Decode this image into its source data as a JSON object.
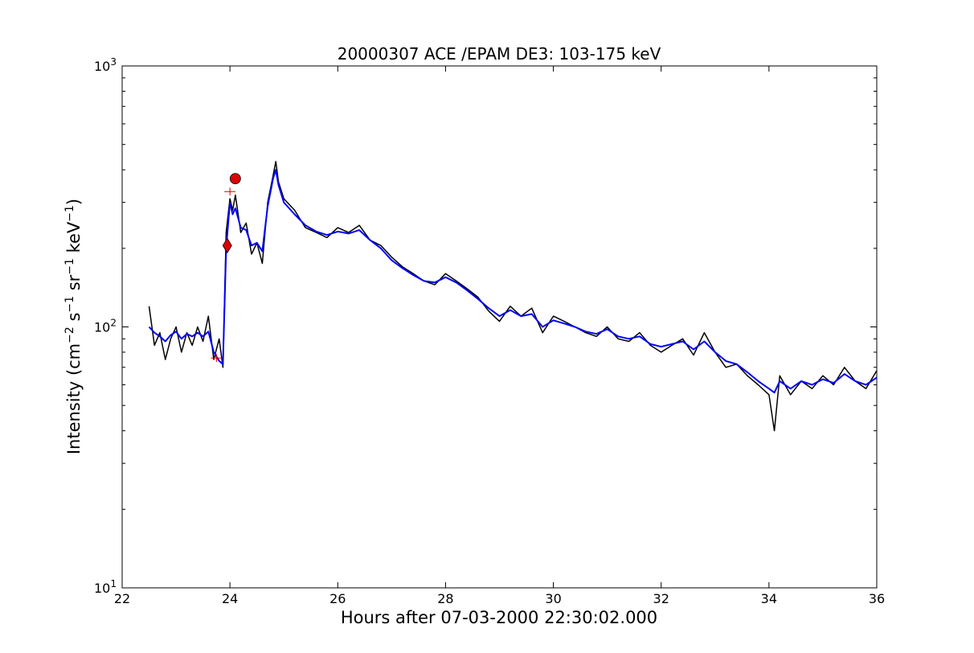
{
  "chart_data": {
    "type": "line",
    "title": "20000307 ACE /EPAM DE3: 103-175 keV",
    "xlabel": "Hours after 07-03-2000 22:30:02.000",
    "ylabel_parts": {
      "prefix": "Intensity (cm",
      "cm_exp": "−2",
      "s": " s",
      "s_exp": "−1",
      "sr": " sr",
      "sr_exp": "−1",
      "kev": " keV",
      "kev_exp": "−1",
      "suffix": ")"
    },
    "xlim": [
      22,
      36
    ],
    "ylim": [
      10,
      1000
    ],
    "yscale": "log",
    "grid": false,
    "x_ticks": [
      22,
      24,
      26,
      28,
      30,
      32,
      34,
      36
    ],
    "x_tick_labels": [
      "22",
      "24",
      "26",
      "28",
      "30",
      "32",
      "34",
      "36"
    ],
    "y_ticks": [
      {
        "value": 10,
        "base": "10",
        "exp": "1"
      },
      {
        "value": 100,
        "base": "10",
        "exp": "2"
      },
      {
        "value": 1000,
        "base": "10",
        "exp": "3"
      }
    ],
    "series": [
      {
        "style": "raw",
        "color": "#000000",
        "x": [
          22.5,
          22.6,
          22.7,
          22.8,
          22.9,
          23.0,
          23.1,
          23.2,
          23.3,
          23.4,
          23.5,
          23.6,
          23.7,
          23.8,
          23.87,
          23.93,
          24.0,
          24.05,
          24.1,
          24.2,
          24.3,
          24.4,
          24.5,
          24.6,
          24.7,
          24.8,
          24.85,
          24.9,
          25.0,
          25.2,
          25.4,
          25.6,
          25.8,
          26.0,
          26.2,
          26.4,
          26.6,
          26.8,
          27.0,
          27.2,
          27.4,
          27.6,
          27.8,
          28.0,
          28.2,
          28.4,
          28.6,
          28.8,
          29.0,
          29.2,
          29.4,
          29.6,
          29.8,
          30.0,
          30.2,
          30.4,
          30.6,
          30.8,
          31.0,
          31.2,
          31.4,
          31.6,
          31.8,
          32.0,
          32.2,
          32.4,
          32.6,
          32.8,
          33.0,
          33.2,
          33.4,
          33.6,
          33.8,
          34.0,
          34.1,
          34.2,
          34.4,
          34.6,
          34.8,
          35.0,
          35.2,
          35.4,
          35.6,
          35.8,
          36.0
        ],
        "y": [
          120,
          85,
          95,
          75,
          90,
          100,
          80,
          95,
          85,
          100,
          88,
          110,
          75,
          90,
          70,
          230,
          310,
          280,
          320,
          230,
          250,
          190,
          210,
          175,
          300,
          380,
          430,
          360,
          310,
          280,
          240,
          230,
          220,
          240,
          230,
          245,
          215,
          205,
          185,
          170,
          160,
          150,
          145,
          160,
          150,
          140,
          130,
          115,
          105,
          120,
          110,
          118,
          95,
          110,
          105,
          100,
          95,
          92,
          100,
          90,
          88,
          95,
          85,
          80,
          85,
          90,
          78,
          95,
          80,
          70,
          72,
          65,
          60,
          55,
          40,
          65,
          55,
          62,
          58,
          65,
          60,
          70,
          62,
          58,
          68
        ]
      },
      {
        "style": "smoothed",
        "color": "#0000ff",
        "x": [
          22.5,
          22.6,
          22.7,
          22.8,
          22.9,
          23.0,
          23.1,
          23.2,
          23.3,
          23.4,
          23.5,
          23.6,
          23.7,
          23.8,
          23.87,
          23.93,
          24.0,
          24.05,
          24.1,
          24.2,
          24.3,
          24.4,
          24.5,
          24.6,
          24.7,
          24.8,
          24.85,
          24.9,
          25.0,
          25.2,
          25.4,
          25.6,
          25.8,
          26.0,
          26.2,
          26.4,
          26.6,
          26.8,
          27.0,
          27.2,
          27.4,
          27.6,
          27.8,
          28.0,
          28.2,
          28.4,
          28.6,
          28.8,
          29.0,
          29.2,
          29.4,
          29.6,
          29.8,
          30.0,
          30.2,
          30.4,
          30.6,
          30.8,
          31.0,
          31.2,
          31.4,
          31.6,
          31.8,
          32.0,
          32.2,
          32.4,
          32.6,
          32.8,
          33.0,
          33.2,
          33.4,
          33.6,
          33.8,
          34.0,
          34.1,
          34.2,
          34.4,
          34.6,
          34.8,
          35.0,
          35.2,
          35.4,
          35.6,
          35.8,
          36.0
        ],
        "y": [
          100,
          95,
          92,
          88,
          93,
          96,
          90,
          94,
          92,
          95,
          92,
          96,
          80,
          74,
          72,
          200,
          300,
          270,
          285,
          240,
          235,
          205,
          210,
          195,
          290,
          370,
          400,
          350,
          300,
          270,
          245,
          232,
          225,
          232,
          228,
          235,
          215,
          200,
          180,
          168,
          158,
          150,
          148,
          155,
          148,
          138,
          128,
          118,
          110,
          116,
          110,
          112,
          100,
          106,
          103,
          100,
          96,
          94,
          98,
          92,
          90,
          92,
          86,
          84,
          86,
          88,
          82,
          88,
          80,
          74,
          72,
          67,
          62,
          58,
          56,
          62,
          58,
          62,
          60,
          63,
          61,
          66,
          62,
          60,
          64
        ]
      }
    ],
    "markers": [
      {
        "shape": "circle",
        "color": "#dd0000",
        "x": 24.1,
        "y": 370
      },
      {
        "shape": "diamond",
        "color": "#dd0000",
        "x": 23.95,
        "y": 205
      },
      {
        "shape": "plus",
        "color": "#dd0000",
        "x": 23.75,
        "y": 76
      },
      {
        "shape": "plus",
        "color": "#dd0000",
        "x": 24.0,
        "y": 330
      }
    ]
  }
}
